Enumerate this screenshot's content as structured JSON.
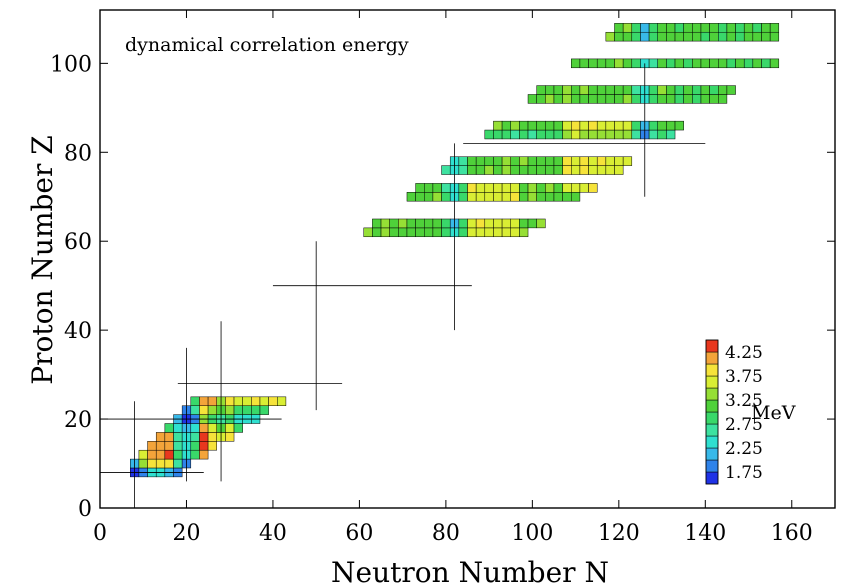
{
  "chart_data": {
    "type": "heatmap",
    "title": "",
    "annotation": "dynamical correlation energy",
    "xlabel": "Neutron Number N",
    "ylabel": "Proton Number Z",
    "xlim": [
      0,
      170
    ],
    "ylim": [
      0,
      112
    ],
    "xticks": [
      0,
      20,
      40,
      60,
      80,
      100,
      120,
      140,
      160
    ],
    "yticks": [
      0,
      20,
      40,
      60,
      80,
      100
    ],
    "grid": false,
    "colorbar": {
      "unit": "MeV",
      "placement": "bottom-right",
      "range": [
        1.5,
        4.5
      ],
      "labels": [
        "4.25",
        "3.75",
        "3.25",
        "2.75",
        "2.25",
        "1.75"
      ],
      "bins": [
        {
          "min": 1.5,
          "max": 1.75,
          "color": "#1f32e6"
        },
        {
          "min": 1.75,
          "max": 2.0,
          "color": "#2f83ea"
        },
        {
          "min": 2.0,
          "max": 2.25,
          "color": "#38b9e9"
        },
        {
          "min": 2.25,
          "max": 2.5,
          "color": "#2fe0d0"
        },
        {
          "min": 2.5,
          "max": 2.75,
          "color": "#3de2a0"
        },
        {
          "min": 2.75,
          "max": 3.0,
          "color": "#39d86a"
        },
        {
          "min": 3.0,
          "max": 3.25,
          "color": "#4fd13a"
        },
        {
          "min": 3.25,
          "max": 3.5,
          "color": "#96df35"
        },
        {
          "min": 3.5,
          "max": 3.75,
          "color": "#d9ee34"
        },
        {
          "min": 3.75,
          "max": 4.0,
          "color": "#f6e33a"
        },
        {
          "min": 4.0,
          "max": 4.25,
          "color": "#f3a43a"
        },
        {
          "min": 4.25,
          "max": 4.5,
          "color": "#e8371e"
        }
      ]
    },
    "magic_numbers": [
      8,
      20,
      28,
      50,
      82,
      126
    ],
    "value_model": {
      "note": "approximate reading of cell colors",
      "base": 3.15,
      "nuclide_cells": "every even Z and even N along the chart, colored by dynamical correlation energy in MeV"
    }
  }
}
